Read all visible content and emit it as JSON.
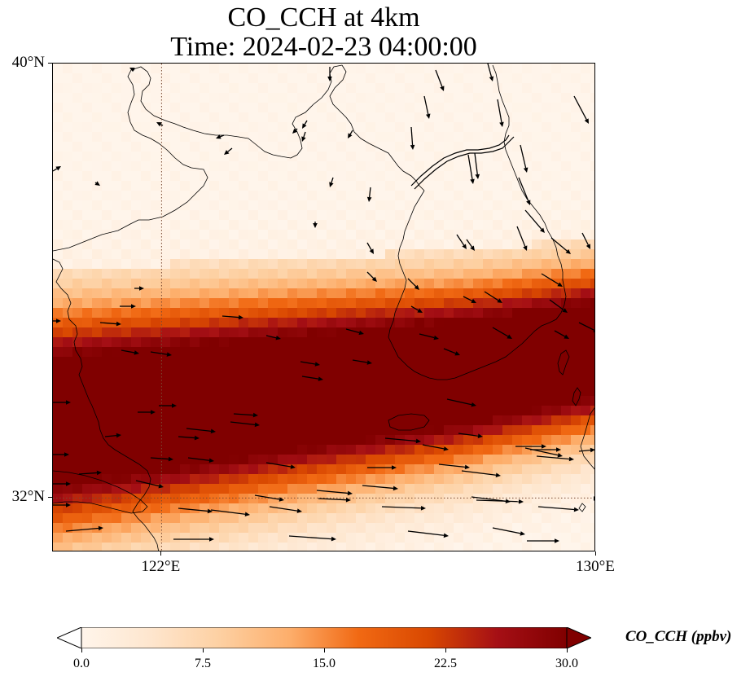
{
  "title": {
    "line1": "CO_CCH at 4km",
    "line2": "Time: 2024-02-23 04:00:00"
  },
  "map": {
    "extent": {
      "lon_min": 120,
      "lon_max": 130,
      "lat_min": 31,
      "lat_max": 40
    },
    "gridlines": {
      "lons": [
        122
      ],
      "lats": [
        32
      ],
      "style": "dotted"
    },
    "x_ticks": [
      {
        "lon": 122,
        "label": "122°E"
      },
      {
        "lon": 130,
        "label": "130°E"
      }
    ],
    "y_ticks": [
      {
        "lat": 40,
        "label": "40°N"
      },
      {
        "lat": 32,
        "label": "32°N"
      }
    ],
    "field_description_band": {
      "peak_value": 30,
      "background_value": 0
    }
  },
  "colorbar": {
    "label": "CO_CCH (ppbv)",
    "min": 0,
    "max": 30,
    "extend": "both",
    "ticks": [
      "0.0",
      "7.5",
      "15.0",
      "22.5",
      "30.0"
    ],
    "colors": [
      "#fff5eb",
      "#fee6ce",
      "#fdd0a2",
      "#fdae6b",
      "#f16913",
      "#d94801",
      "#a50f15",
      "#800000"
    ]
  },
  "colors": {
    "coastline": "#000000",
    "wind_arrow": "#000000",
    "gridline": "#7a4a33"
  }
}
